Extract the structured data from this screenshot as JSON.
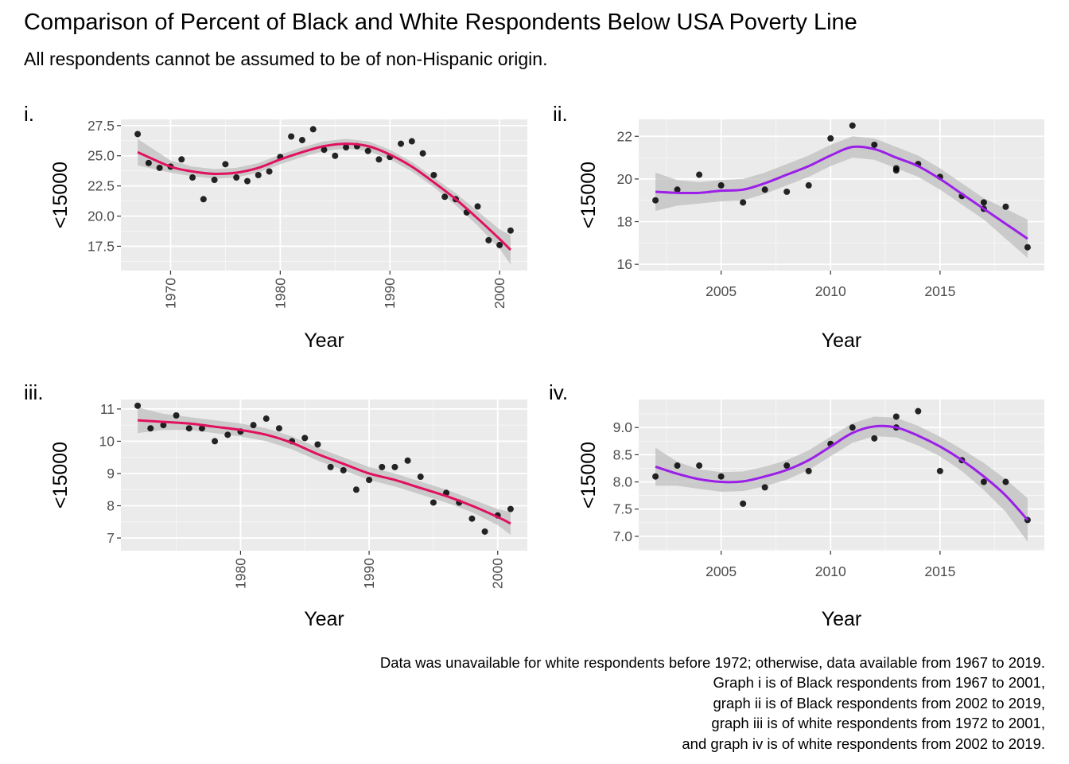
{
  "title": "Comparison of Percent of Black and White Respondents Below USA Poverty Line",
  "subtitle": "All respondents cannot be assumed to be of non-Hispanic origin.",
  "caption": [
    "Data was unavailable for white respondents before 1972; otherwise, data available from 1967 to 2019.",
    "Graph i is of Black respondents from 1967 to 2001,",
    "graph ii is of Black respondents from 2002 to 2019,",
    "graph iii is of white respondents from 1972 to 2001,",
    "and graph iv is of white respondents from 2002 to 2019."
  ],
  "colors": {
    "panel_bg": "#ebebeb",
    "grid": "#ffffff",
    "points": "#000000",
    "band": "#bfbfbf",
    "pink_line": "#e0115f",
    "purple_line": "#9b1fe8",
    "axis_text": "#4d4d4d"
  },
  "chart_data": [
    {
      "type": "scatter",
      "tag": "i.",
      "xlabel": "Year",
      "ylabel": "<15000",
      "xlim": [
        1967,
        2001
      ],
      "ylim": [
        16,
        27.5
      ],
      "xticks": [
        1970,
        1980,
        1990,
        2000
      ],
      "yticks": [
        17.5,
        20.0,
        22.5,
        25.0,
        27.5
      ],
      "x_tick_rotated": true,
      "smooth_color": "pink_line",
      "points": [
        [
          1967,
          26.8
        ],
        [
          1968,
          24.4
        ],
        [
          1969,
          24.0
        ],
        [
          1970,
          24.1
        ],
        [
          1971,
          24.7
        ],
        [
          1972,
          23.2
        ],
        [
          1973,
          21.4
        ],
        [
          1974,
          23.0
        ],
        [
          1975,
          24.3
        ],
        [
          1976,
          23.2
        ],
        [
          1977,
          22.9
        ],
        [
          1978,
          23.4
        ],
        [
          1979,
          23.7
        ],
        [
          1980,
          24.9
        ],
        [
          1981,
          26.6
        ],
        [
          1982,
          26.3
        ],
        [
          1983,
          27.2
        ],
        [
          1984,
          25.5
        ],
        [
          1985,
          25.0
        ],
        [
          1986,
          25.7
        ],
        [
          1987,
          25.8
        ],
        [
          1988,
          25.4
        ],
        [
          1989,
          24.7
        ],
        [
          1990,
          24.9
        ],
        [
          1991,
          26.0
        ],
        [
          1992,
          26.2
        ],
        [
          1993,
          25.2
        ],
        [
          1994,
          23.4
        ],
        [
          1995,
          21.6
        ],
        [
          1996,
          21.4
        ],
        [
          1997,
          20.3
        ],
        [
          1998,
          20.8
        ],
        [
          1999,
          18.0
        ],
        [
          2000,
          17.6
        ],
        [
          2001,
          18.8
        ]
      ],
      "smooth": [
        [
          1967,
          25.3
        ],
        [
          1970,
          24.1
        ],
        [
          1972,
          23.7
        ],
        [
          1974,
          23.5
        ],
        [
          1976,
          23.6
        ],
        [
          1978,
          24.0
        ],
        [
          1980,
          24.7
        ],
        [
          1982,
          25.3
        ],
        [
          1984,
          25.8
        ],
        [
          1986,
          26.0
        ],
        [
          1988,
          25.8
        ],
        [
          1990,
          25.1
        ],
        [
          1992,
          24.1
        ],
        [
          1994,
          22.8
        ],
        [
          1996,
          21.4
        ],
        [
          1998,
          19.8
        ],
        [
          2000,
          18.1
        ],
        [
          2001,
          17.2
        ]
      ],
      "band": [
        1.1,
        0.5,
        0.4,
        0.4,
        0.4,
        0.4,
        0.4,
        0.4,
        0.4,
        0.4,
        0.4,
        0.4,
        0.4,
        0.4,
        0.5,
        0.6,
        0.8,
        1.2
      ]
    },
    {
      "type": "scatter",
      "tag": "ii.",
      "xlabel": "Year",
      "ylabel": "<15000",
      "xlim": [
        2002,
        2019
      ],
      "ylim": [
        16,
        22.5
      ],
      "xticks": [
        2005,
        2010,
        2015
      ],
      "yticks": [
        16,
        18,
        20,
        22
      ],
      "x_tick_rotated": false,
      "smooth_color": "purple_line",
      "points": [
        [
          2002,
          19.0
        ],
        [
          2003,
          19.5
        ],
        [
          2004,
          20.2
        ],
        [
          2005,
          19.7
        ],
        [
          2006,
          18.9
        ],
        [
          2007,
          19.5
        ],
        [
          2008,
          19.4
        ],
        [
          2009,
          19.7
        ],
        [
          2010,
          21.9
        ],
        [
          2011,
          22.5
        ],
        [
          2012,
          21.6
        ],
        [
          2013,
          20.5
        ],
        [
          2013,
          20.4
        ],
        [
          2014,
          20.7
        ],
        [
          2015,
          20.1
        ],
        [
          2016,
          19.2
        ],
        [
          2017,
          18.9
        ],
        [
          2017,
          18.6
        ],
        [
          2018,
          18.7
        ],
        [
          2019,
          16.8
        ]
      ],
      "smooth": [
        [
          2002,
          19.4
        ],
        [
          2003,
          19.35
        ],
        [
          2004,
          19.35
        ],
        [
          2005,
          19.45
        ],
        [
          2006,
          19.5
        ],
        [
          2007,
          19.8
        ],
        [
          2008,
          20.2
        ],
        [
          2009,
          20.6
        ],
        [
          2010,
          21.1
        ],
        [
          2011,
          21.5
        ],
        [
          2012,
          21.4
        ],
        [
          2013,
          21.0
        ],
        [
          2014,
          20.6
        ],
        [
          2015,
          20.0
        ],
        [
          2016,
          19.3
        ],
        [
          2017,
          18.6
        ],
        [
          2018,
          17.9
        ],
        [
          2019,
          17.2
        ]
      ],
      "band": [
        0.9,
        0.6,
        0.5,
        0.5,
        0.5,
        0.5,
        0.5,
        0.5,
        0.5,
        0.5,
        0.5,
        0.5,
        0.5,
        0.5,
        0.5,
        0.5,
        0.7,
        0.9
      ]
    },
    {
      "type": "scatter",
      "tag": "iii.",
      "xlabel": "Year",
      "ylabel": "<15000",
      "xlim": [
        1972,
        2001
      ],
      "ylim": [
        6.8,
        11.1
      ],
      "xticks": [
        1980,
        1990,
        2000
      ],
      "yticks": [
        7,
        8,
        9,
        10,
        11
      ],
      "x_tick_rotated": true,
      "smooth_color": "pink_line",
      "points": [
        [
          1972,
          11.1
        ],
        [
          1973,
          10.4
        ],
        [
          1974,
          10.5
        ],
        [
          1975,
          10.8
        ],
        [
          1976,
          10.4
        ],
        [
          1977,
          10.4
        ],
        [
          1978,
          10.0
        ],
        [
          1979,
          10.2
        ],
        [
          1980,
          10.3
        ],
        [
          1981,
          10.5
        ],
        [
          1982,
          10.7
        ],
        [
          1983,
          10.4
        ],
        [
          1984,
          10.0
        ],
        [
          1985,
          10.1
        ],
        [
          1986,
          9.9
        ],
        [
          1987,
          9.2
        ],
        [
          1988,
          9.1
        ],
        [
          1989,
          8.5
        ],
        [
          1990,
          8.8
        ],
        [
          1991,
          9.2
        ],
        [
          1992,
          9.2
        ],
        [
          1993,
          9.4
        ],
        [
          1994,
          8.9
        ],
        [
          1995,
          8.1
        ],
        [
          1996,
          8.4
        ],
        [
          1997,
          8.1
        ],
        [
          1998,
          7.6
        ],
        [
          1999,
          7.2
        ],
        [
          2000,
          7.7
        ],
        [
          2001,
          7.9
        ]
      ],
      "smooth": [
        [
          1972,
          10.65
        ],
        [
          1974,
          10.6
        ],
        [
          1976,
          10.55
        ],
        [
          1978,
          10.45
        ],
        [
          1980,
          10.35
        ],
        [
          1982,
          10.2
        ],
        [
          1984,
          9.95
        ],
        [
          1986,
          9.6
        ],
        [
          1988,
          9.3
        ],
        [
          1990,
          9.0
        ],
        [
          1992,
          8.8
        ],
        [
          1994,
          8.55
        ],
        [
          1996,
          8.3
        ],
        [
          1998,
          8.0
        ],
        [
          2000,
          7.65
        ],
        [
          2001,
          7.45
        ]
      ],
      "band": [
        0.4,
        0.25,
        0.2,
        0.2,
        0.2,
        0.2,
        0.2,
        0.2,
        0.2,
        0.2,
        0.2,
        0.2,
        0.2,
        0.2,
        0.25,
        0.35
      ]
    },
    {
      "type": "scatter",
      "tag": "iv.",
      "xlabel": "Year",
      "ylabel": "<15000",
      "xlim": [
        2002,
        2019
      ],
      "ylim": [
        6.85,
        9.4
      ],
      "xticks": [
        2005,
        2010,
        2015
      ],
      "yticks": [
        7.0,
        7.5,
        8.0,
        8.5,
        9.0
      ],
      "x_tick_rotated": false,
      "smooth_color": "purple_line",
      "points": [
        [
          2002,
          8.1
        ],
        [
          2003,
          8.3
        ],
        [
          2004,
          8.3
        ],
        [
          2005,
          8.1
        ],
        [
          2006,
          7.6
        ],
        [
          2007,
          7.9
        ],
        [
          2008,
          8.3
        ],
        [
          2009,
          8.2
        ],
        [
          2010,
          8.7
        ],
        [
          2011,
          9.0
        ],
        [
          2012,
          8.8
        ],
        [
          2013,
          9.2
        ],
        [
          2013,
          9.0
        ],
        [
          2014,
          9.3
        ],
        [
          2015,
          8.2
        ],
        [
          2016,
          8.4
        ],
        [
          2017,
          8.0
        ],
        [
          2018,
          8.0
        ],
        [
          2019,
          7.3
        ]
      ],
      "smooth": [
        [
          2002,
          8.28
        ],
        [
          2003,
          8.15
        ],
        [
          2004,
          8.05
        ],
        [
          2005,
          8.0
        ],
        [
          2006,
          8.01
        ],
        [
          2007,
          8.1
        ],
        [
          2008,
          8.22
        ],
        [
          2009,
          8.4
        ],
        [
          2010,
          8.65
        ],
        [
          2011,
          8.9
        ],
        [
          2012,
          9.02
        ],
        [
          2013,
          9.0
        ],
        [
          2014,
          8.85
        ],
        [
          2015,
          8.65
        ],
        [
          2016,
          8.4
        ],
        [
          2017,
          8.1
        ],
        [
          2018,
          7.75
        ],
        [
          2019,
          7.3
        ]
      ],
      "band": [
        0.35,
        0.22,
        0.18,
        0.18,
        0.18,
        0.18,
        0.18,
        0.18,
        0.18,
        0.18,
        0.18,
        0.18,
        0.18,
        0.18,
        0.2,
        0.25,
        0.3,
        0.4
      ]
    }
  ]
}
